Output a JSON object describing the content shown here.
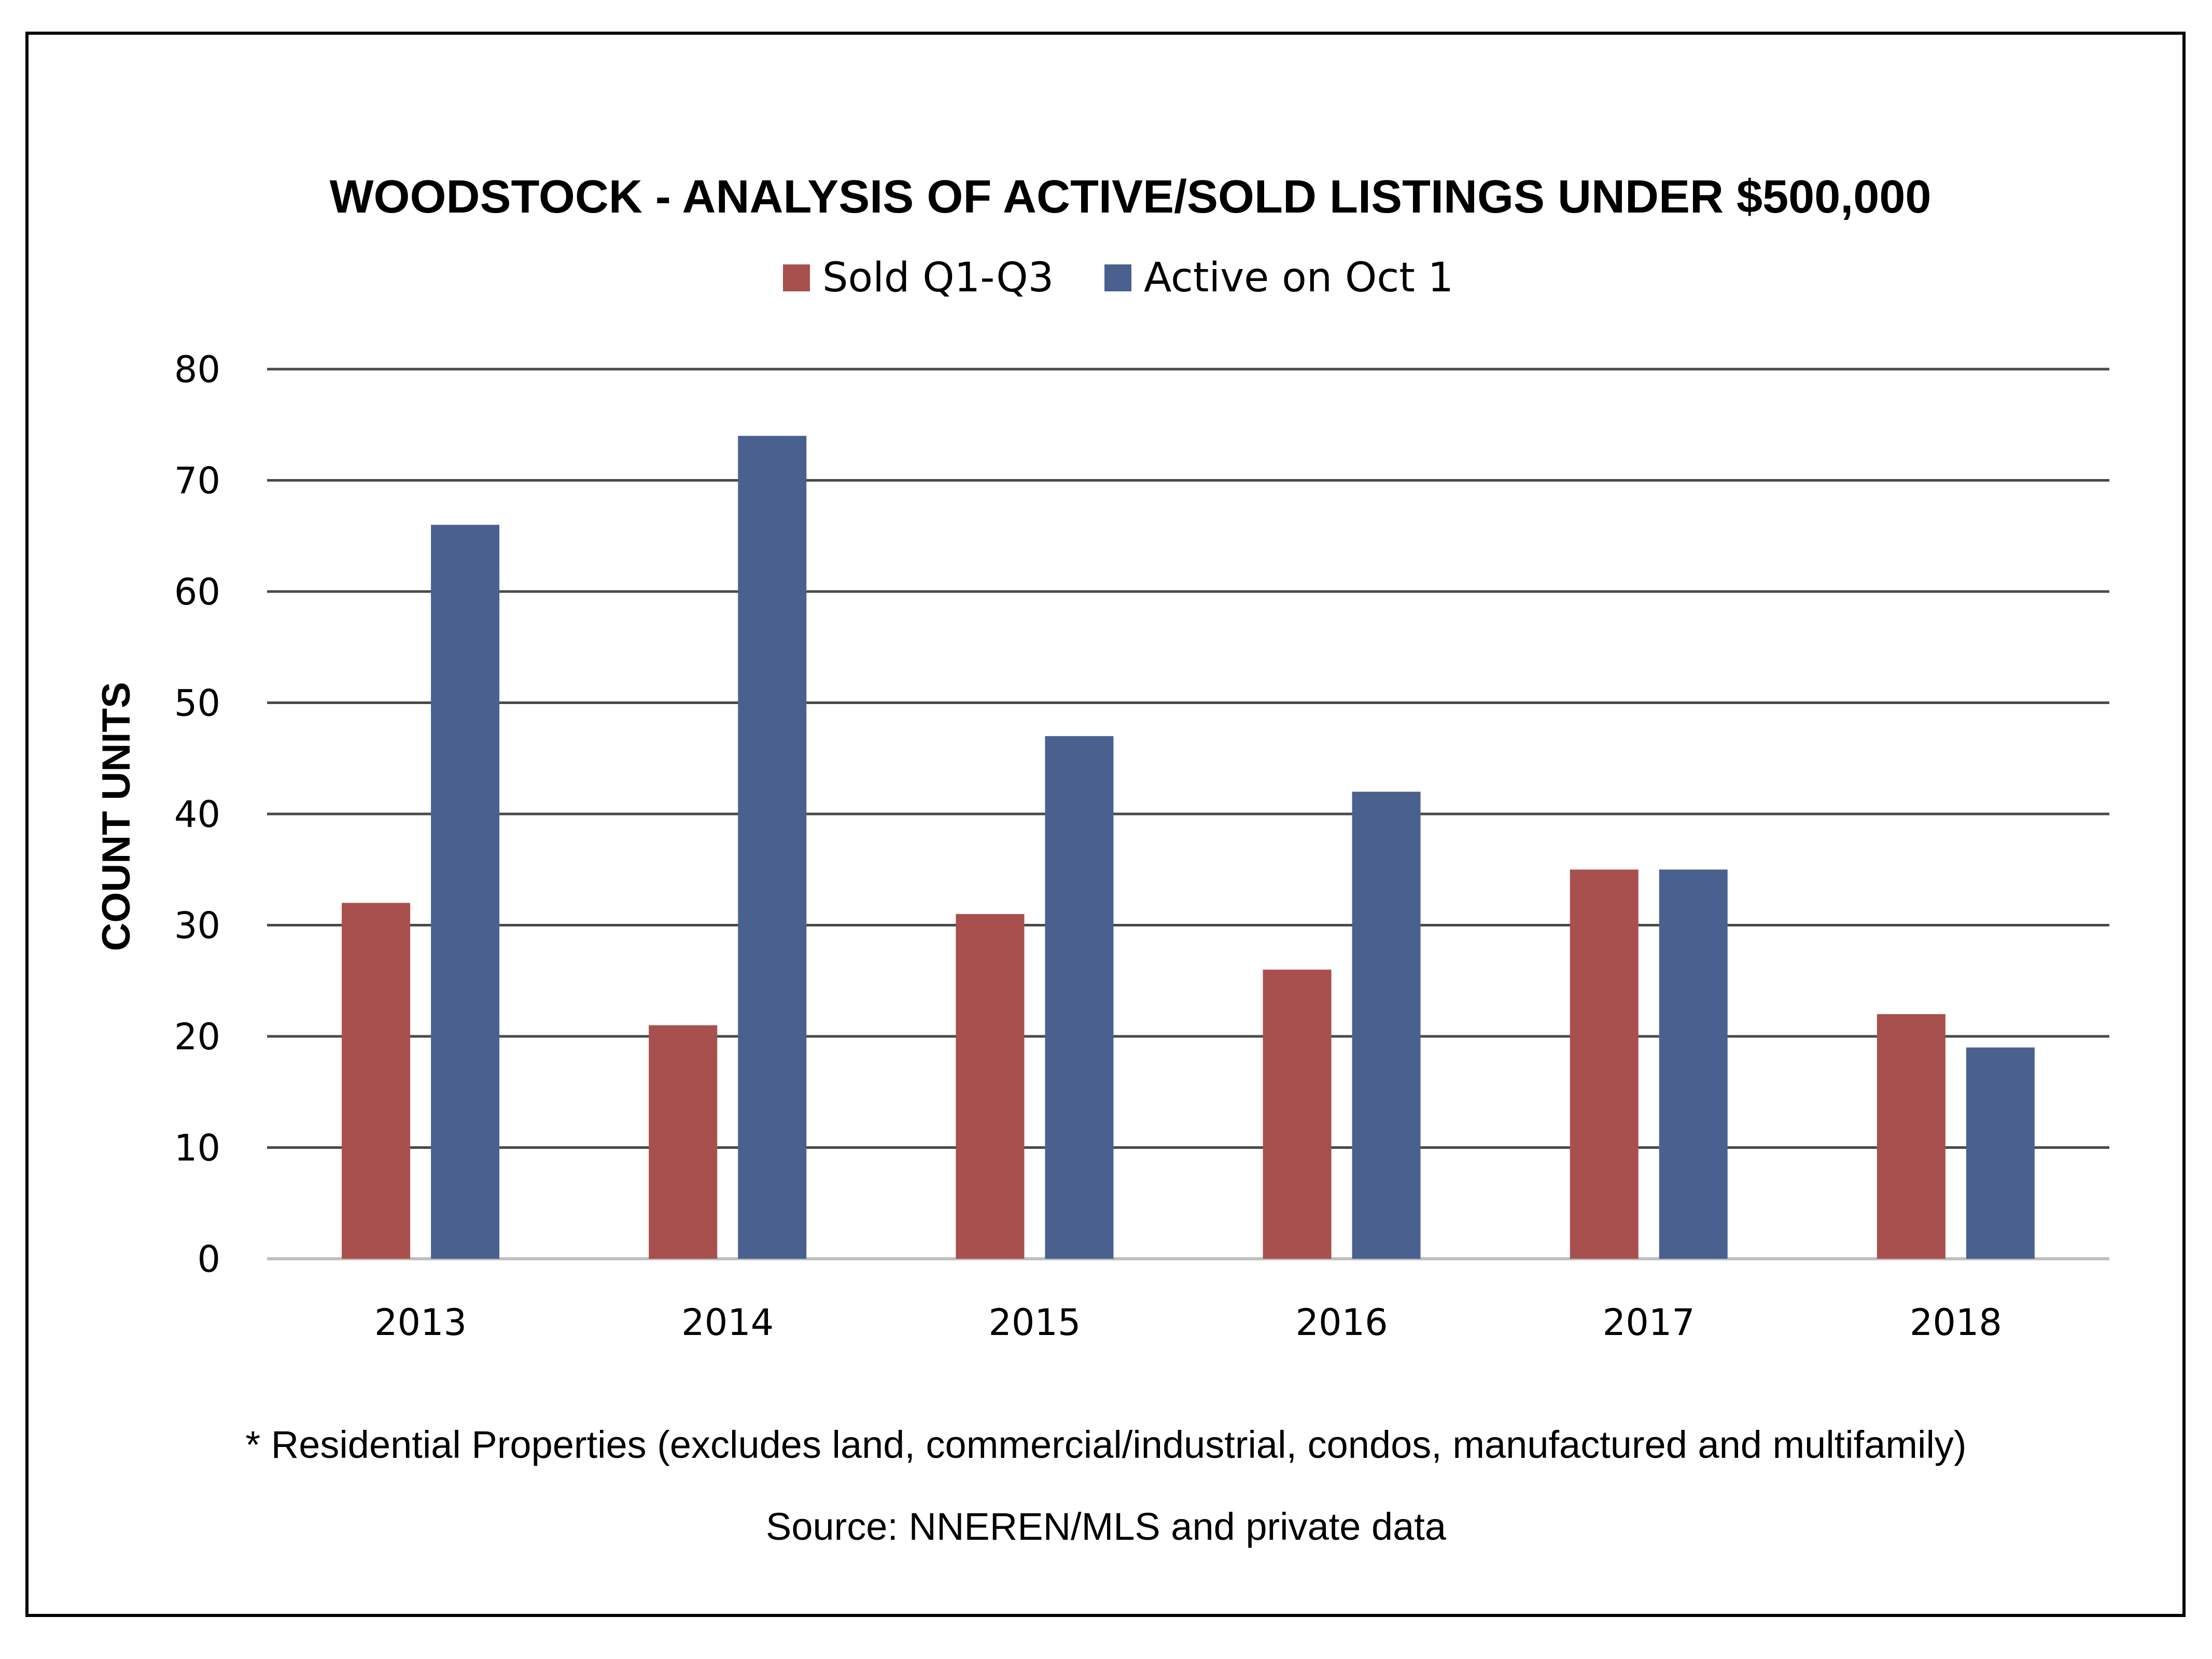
{
  "chart_data": {
    "type": "bar",
    "title": "WOODSTOCK - ANALYSIS OF ACTIVE/SOLD LISTINGS UNDER $500,000",
    "xlabel": "",
    "ylabel": "COUNT UNITS",
    "categories": [
      "2013",
      "2014",
      "2015",
      "2016",
      "2017",
      "2018"
    ],
    "series": [
      {
        "name": "Sold Q1-Q3",
        "color": "#a8504d",
        "values": [
          32,
          21,
          31,
          26,
          35,
          22
        ]
      },
      {
        "name": "Active on Oct 1",
        "color": "#4a6190",
        "values": [
          66,
          74,
          47,
          42,
          35,
          19
        ]
      }
    ],
    "ylim": [
      0,
      80
    ],
    "yticks": [
      0,
      10,
      20,
      30,
      40,
      50,
      60,
      70,
      80
    ],
    "ytick_labels": [
      "0",
      "10",
      "20",
      "30",
      "40",
      "50",
      "60",
      "70",
      "80"
    ],
    "grid": true,
    "legend_position": "top-center"
  },
  "footnotes": {
    "note": "* Residential Properties (excludes land, commercial/industrial, condos, manufactured and multifamily)",
    "source": "Source: NNEREN/MLS and private data"
  }
}
